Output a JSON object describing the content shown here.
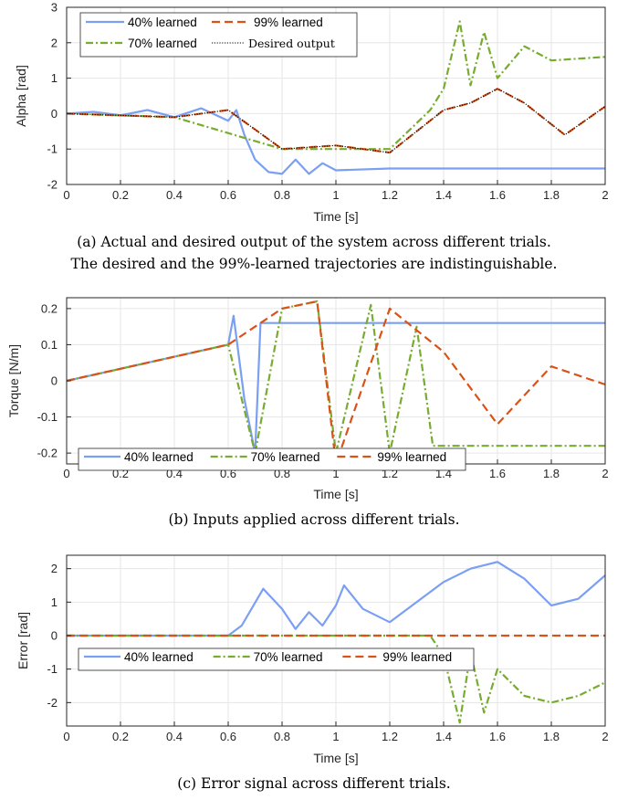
{
  "colors": {
    "blue": "#7b9ff2",
    "green": "#77ac30",
    "orange": "#d95319",
    "black": "#000000",
    "grid": "#e6e6e6"
  },
  "chart_data": [
    {
      "type": "line",
      "xlabel": "Time [s]",
      "ylabel": "Alpha [rad]",
      "xlim": [
        0,
        2
      ],
      "ylim": [
        -2,
        3
      ],
      "xticks": [
        0,
        0.2,
        0.4,
        0.6,
        0.8,
        1,
        1.2,
        1.4,
        1.6,
        1.8,
        2
      ],
      "xtick_labels": [
        "0",
        "0.2",
        "0.4",
        "0.6",
        "0.8",
        "1",
        "1.2",
        "1.4",
        "1.6",
        "1.8",
        "2"
      ],
      "yticks": [
        -2,
        -1,
        0,
        1,
        2,
        3
      ],
      "ytick_labels": [
        "-2",
        "-1",
        "0",
        "1",
        "2",
        "3"
      ],
      "grid": true,
      "legend_placement": "top-left",
      "caption": "(a) Actual and desired output of the system across different trials.",
      "caption2": "The desired and the 99%-learned trajectories are indistinguishable.",
      "series": [
        {
          "name": "40% learned",
          "color": "#7b9ff2",
          "style": "solid",
          "x": [
            0,
            0.1,
            0.2,
            0.3,
            0.4,
            0.5,
            0.6,
            0.63,
            0.66,
            0.7,
            0.75,
            0.8,
            0.85,
            0.9,
            0.95,
            1.0,
            1.2,
            1.4,
            1.6,
            1.8,
            2.0
          ],
          "y": [
            0,
            0.05,
            -0.05,
            0.1,
            -0.1,
            0.15,
            -0.2,
            0.1,
            -0.6,
            -1.3,
            -1.65,
            -1.7,
            -1.3,
            -1.7,
            -1.4,
            -1.6,
            -1.55,
            -1.55,
            -1.55,
            -1.55,
            -1.55
          ]
        },
        {
          "name": "70% learned",
          "color": "#77ac30",
          "style": "dashdot",
          "x": [
            0,
            0.4,
            0.8,
            1.2,
            1.35,
            1.4,
            1.46,
            1.5,
            1.55,
            1.6,
            1.7,
            1.8,
            2.0
          ],
          "y": [
            0,
            -0.1,
            -1.0,
            -1.0,
            0.1,
            0.7,
            2.6,
            0.8,
            2.3,
            1.0,
            1.9,
            1.5,
            1.6
          ]
        },
        {
          "name": "99% learned",
          "color": "#d95319",
          "style": "dashed",
          "x": [
            0,
            0.4,
            0.6,
            0.8,
            1.0,
            1.2,
            1.4,
            1.5,
            1.6,
            1.7,
            1.85,
            2.0
          ],
          "y": [
            0,
            -0.1,
            0.1,
            -1.0,
            -0.9,
            -1.1,
            0.1,
            0.3,
            0.7,
            0.3,
            -0.6,
            0.2
          ]
        },
        {
          "name": "Desired output",
          "color": "#000000",
          "style": "dotted",
          "x": [
            0,
            0.4,
            0.6,
            0.8,
            1.0,
            1.2,
            1.4,
            1.5,
            1.6,
            1.7,
            1.85,
            2.0
          ],
          "y": [
            0,
            -0.1,
            0.1,
            -1.0,
            -0.9,
            -1.1,
            0.1,
            0.3,
            0.7,
            0.3,
            -0.6,
            0.2
          ]
        }
      ]
    },
    {
      "type": "line",
      "xlabel": "Time [s]",
      "ylabel": "Torque [N/m]",
      "xlim": [
        0,
        2
      ],
      "ylim": [
        -0.23,
        0.23
      ],
      "xticks": [
        0,
        0.2,
        0.4,
        0.6,
        0.8,
        1,
        1.2,
        1.4,
        1.6,
        1.8,
        2
      ],
      "xtick_labels": [
        "0",
        "0.2",
        "0.4",
        "0.6",
        "0.8",
        "1",
        "1.2",
        "1.4",
        "1.6",
        "1.8",
        "2"
      ],
      "yticks": [
        -0.2,
        -0.1,
        0,
        0.1,
        0.2
      ],
      "ytick_labels": [
        "-0.2",
        "-0.1",
        "0",
        "0.1",
        "0.2"
      ],
      "grid": true,
      "legend_placement": "bottom-left",
      "caption": "(b) Inputs applied across different trials.",
      "series": [
        {
          "name": "40% learned",
          "color": "#7b9ff2",
          "style": "solid",
          "x": [
            0,
            0.3,
            0.6,
            0.62,
            0.66,
            0.7,
            0.72,
            1.0,
            1.5,
            2.0
          ],
          "y": [
            0,
            0.05,
            0.1,
            0.18,
            -0.05,
            -0.2,
            0.16,
            0.16,
            0.16,
            0.16
          ]
        },
        {
          "name": "70% learned",
          "color": "#77ac30",
          "style": "dashdot",
          "x": [
            0,
            0.3,
            0.6,
            0.7,
            0.8,
            0.93,
            1.0,
            1.13,
            1.2,
            1.3,
            1.36,
            1.4,
            1.6,
            2.0
          ],
          "y": [
            0,
            0.05,
            0.1,
            -0.2,
            0.2,
            0.22,
            -0.2,
            0.21,
            -0.2,
            0.15,
            -0.18,
            -0.18,
            -0.18,
            -0.18
          ]
        },
        {
          "name": "99% learned",
          "color": "#d95319",
          "style": "dashed",
          "x": [
            0,
            0.3,
            0.6,
            0.8,
            0.93,
            1.0,
            1.2,
            1.4,
            1.6,
            1.8,
            2.0
          ],
          "y": [
            0,
            0.05,
            0.1,
            0.2,
            0.22,
            -0.23,
            0.2,
            0.08,
            -0.12,
            0.04,
            -0.01
          ]
        }
      ]
    },
    {
      "type": "line",
      "xlabel": "Time [s]",
      "ylabel": "Error [rad]",
      "xlim": [
        0,
        2
      ],
      "ylim": [
        -2.7,
        2.4
      ],
      "xticks": [
        0,
        0.2,
        0.4,
        0.6,
        0.8,
        1,
        1.2,
        1.4,
        1.6,
        1.8,
        2
      ],
      "xtick_labels": [
        "0",
        "0.2",
        "0.4",
        "0.6",
        "0.8",
        "1",
        "1.2",
        "1.4",
        "1.6",
        "1.8",
        "2"
      ],
      "yticks": [
        -2,
        -1,
        0,
        1,
        2
      ],
      "ytick_labels": [
        "-2",
        "-1",
        "0",
        "1",
        "2"
      ],
      "grid": true,
      "legend_placement": "middle-left",
      "caption": "(c) Error signal across different trials.",
      "series": [
        {
          "name": "40% learned",
          "color": "#7b9ff2",
          "style": "solid",
          "x": [
            0,
            0.6,
            0.65,
            0.73,
            0.8,
            0.85,
            0.9,
            0.95,
            1.0,
            1.03,
            1.1,
            1.2,
            1.3,
            1.4,
            1.5,
            1.6,
            1.7,
            1.8,
            1.9,
            2.0
          ],
          "y": [
            0,
            0,
            0.3,
            1.4,
            0.8,
            0.2,
            0.7,
            0.3,
            0.9,
            1.5,
            0.8,
            0.4,
            1.0,
            1.6,
            2.0,
            2.2,
            1.7,
            0.9,
            1.1,
            1.8
          ]
        },
        {
          "name": "70% learned",
          "color": "#77ac30",
          "style": "dashdot",
          "x": [
            0,
            1.35,
            1.4,
            1.46,
            1.5,
            1.55,
            1.6,
            1.7,
            1.8,
            1.9,
            2.0
          ],
          "y": [
            0,
            0,
            -0.6,
            -2.6,
            -0.5,
            -2.3,
            -1.0,
            -1.8,
            -2.0,
            -1.8,
            -1.4
          ]
        },
        {
          "name": "99% learned",
          "color": "#d95319",
          "style": "dashed",
          "x": [
            0,
            2.0
          ],
          "y": [
            0,
            0
          ]
        }
      ]
    }
  ]
}
